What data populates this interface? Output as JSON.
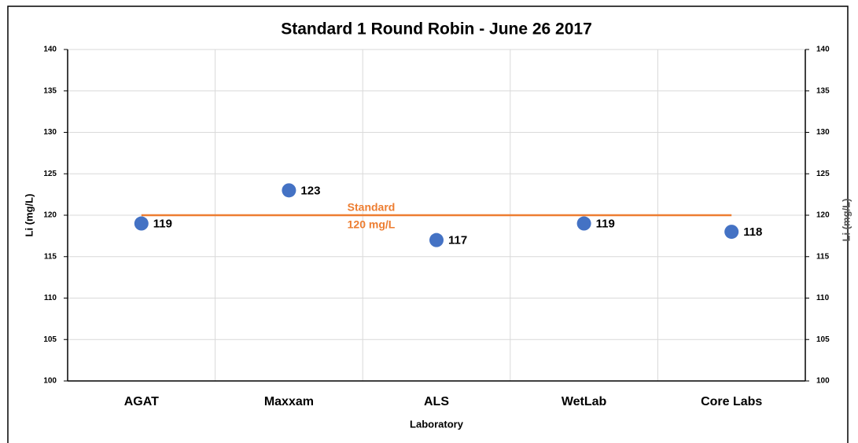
{
  "chart_data": {
    "type": "scatter",
    "title": "Standard 1 Round Robin - June 26 2017",
    "xlabel": "Laboratory",
    "ylabel": "Li (mg/L)",
    "y2label": "Li (mg/L)",
    "categories": [
      "AGAT",
      "Maxxam",
      "ALS",
      "WetLab",
      "Core Labs"
    ],
    "values": [
      119,
      123,
      117,
      119,
      118
    ],
    "color": "#4472c4",
    "standard": {
      "values": [
        120,
        120,
        120,
        120,
        120
      ],
      "color": "#ed7d31",
      "annotation": [
        "Standard",
        "120 mg/L"
      ]
    },
    "ylim": [
      100,
      140
    ],
    "yticks": [
      100,
      105,
      110,
      115,
      120,
      125,
      130,
      135,
      140
    ],
    "y2lim": [
      100,
      140
    ],
    "y2ticks": [
      100,
      105,
      110,
      115,
      120,
      125,
      130,
      135,
      140
    ],
    "grid": true
  }
}
